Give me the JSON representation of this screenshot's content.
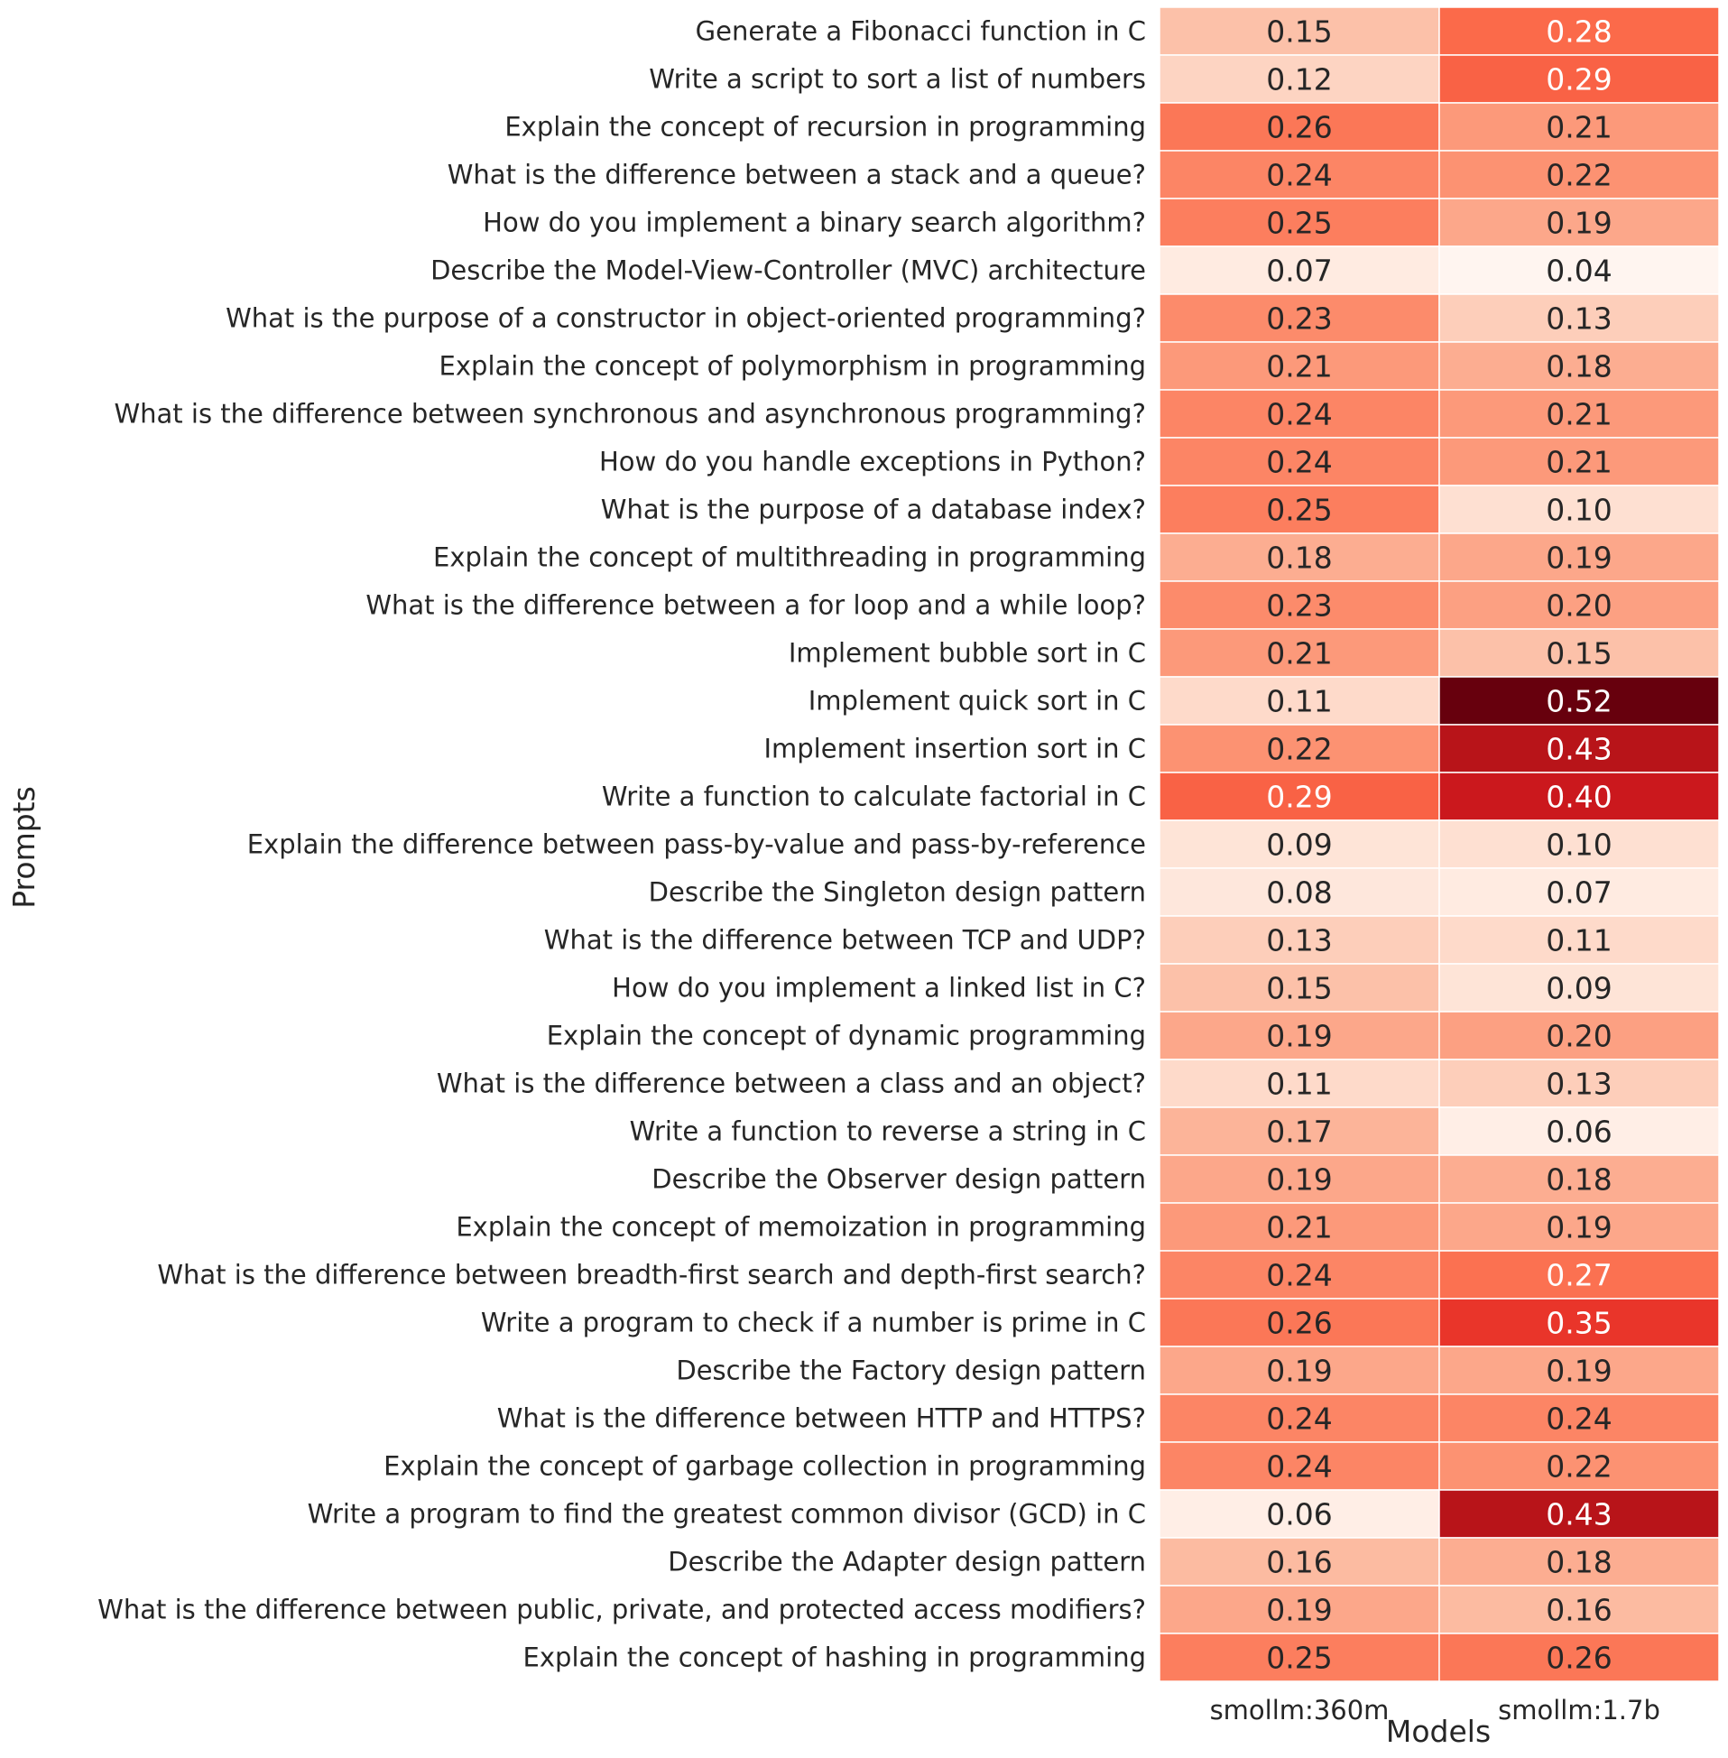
{
  "chart_data": {
    "type": "heatmap",
    "xlabel": "Models",
    "ylabel": "Prompts",
    "columns": [
      "smollm:360m",
      "smollm:1.7b"
    ],
    "rows": [
      "Generate a Fibonacci function in C",
      "Write a script to sort a list of numbers",
      "Explain the concept of recursion in programming",
      "What is the difference between a stack and a queue?",
      "How do you implement a binary search algorithm?",
      "Describe the Model-View-Controller (MVC) architecture",
      "What is the purpose of a constructor in object-oriented programming?",
      "Explain the concept of polymorphism in programming",
      "What is the difference between synchronous and asynchronous programming?",
      "How do you handle exceptions in Python?",
      "What is the purpose of a database index?",
      "Explain the concept of multithreading in programming",
      "What is the difference between a for loop and a while loop?",
      "Implement bubble sort in C",
      "Implement quick sort in C",
      "Implement insertion sort in C",
      "Write a function to calculate factorial in C",
      "Explain the difference between pass-by-value and pass-by-reference",
      "Describe the Singleton design pattern",
      "What is the difference between TCP and UDP?",
      "How do you implement a linked list in C?",
      "Explain the concept of dynamic programming",
      "What is the difference between a class and an object?",
      "Write a function to reverse a string in C",
      "Describe the Observer design pattern",
      "Explain the concept of memoization in programming",
      "What is the difference between breadth-first search and depth-first search?",
      "Write a program to check if a number is prime in C",
      "Describe the Factory design pattern",
      "What is the difference between HTTP and HTTPS?",
      "Explain the concept of garbage collection in programming",
      "Write a program to find the greatest common divisor (GCD) in C",
      "Describe the Adapter design pattern",
      "What is the difference between public, private, and protected access modifiers?",
      "Explain the concept of hashing in programming"
    ],
    "values": [
      [
        0.15,
        0.28
      ],
      [
        0.12,
        0.29
      ],
      [
        0.26,
        0.21
      ],
      [
        0.24,
        0.22
      ],
      [
        0.25,
        0.19
      ],
      [
        0.07,
        0.04
      ],
      [
        0.23,
        0.13
      ],
      [
        0.21,
        0.18
      ],
      [
        0.24,
        0.21
      ],
      [
        0.24,
        0.21
      ],
      [
        0.25,
        0.1
      ],
      [
        0.18,
        0.19
      ],
      [
        0.23,
        0.2
      ],
      [
        0.21,
        0.15
      ],
      [
        0.11,
        0.52
      ],
      [
        0.22,
        0.43
      ],
      [
        0.29,
        0.4
      ],
      [
        0.09,
        0.1
      ],
      [
        0.08,
        0.07
      ],
      [
        0.13,
        0.11
      ],
      [
        0.15,
        0.09
      ],
      [
        0.19,
        0.2
      ],
      [
        0.11,
        0.13
      ],
      [
        0.17,
        0.06
      ],
      [
        0.19,
        0.18
      ],
      [
        0.21,
        0.19
      ],
      [
        0.24,
        0.27
      ],
      [
        0.26,
        0.35
      ],
      [
        0.19,
        0.19
      ],
      [
        0.24,
        0.24
      ],
      [
        0.24,
        0.22
      ],
      [
        0.06,
        0.43
      ],
      [
        0.16,
        0.18
      ],
      [
        0.19,
        0.16
      ],
      [
        0.25,
        0.26
      ]
    ],
    "value_format": "2 decimals",
    "colormap": "Reds",
    "vmin": 0.04,
    "vmax": 0.52,
    "colorbar": false,
    "colors": {
      "low": "#fff5f0",
      "high": "#67000d",
      "dark_text": "#262626",
      "light_text": "#ffffff",
      "grid": "#ffffff"
    }
  }
}
